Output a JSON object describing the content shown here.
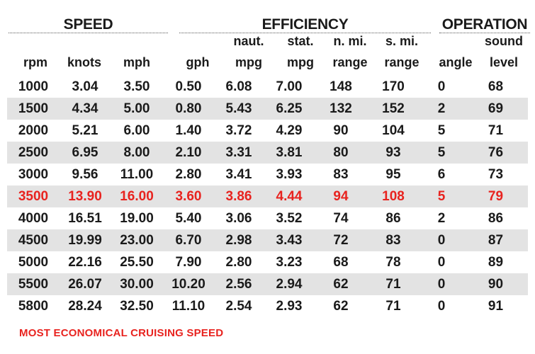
{
  "groups": {
    "speed": "SPEED",
    "efficiency": "EFFICIENCY",
    "operation": "OPERATION"
  },
  "headers": {
    "rpm": [
      "",
      "rpm"
    ],
    "knots": [
      "",
      "knots"
    ],
    "mph": [
      "",
      "mph"
    ],
    "gph": [
      "",
      "gph"
    ],
    "naut_mpg": [
      "naut.",
      "mpg"
    ],
    "stat_mpg": [
      "stat.",
      "mpg"
    ],
    "n_mi_range": [
      "n. mi.",
      "range"
    ],
    "s_mi_range": [
      "s. mi.",
      "range"
    ],
    "angle": [
      "",
      "angle"
    ],
    "sound_level": [
      "sound",
      "level"
    ]
  },
  "rows": [
    [
      "1000",
      "3.04",
      "3.50",
      "0.50",
      "6.08",
      "7.00",
      "148",
      "170",
      "0",
      "68"
    ],
    [
      "1500",
      "4.34",
      "5.00",
      "0.80",
      "5.43",
      "6.25",
      "132",
      "152",
      "2",
      "69"
    ],
    [
      "2000",
      "5.21",
      "6.00",
      "1.40",
      "3.72",
      "4.29",
      "90",
      "104",
      "5",
      "71"
    ],
    [
      "2500",
      "6.95",
      "8.00",
      "2.10",
      "3.31",
      "3.81",
      "80",
      "93",
      "5",
      "76"
    ],
    [
      "3000",
      "9.56",
      "11.00",
      "2.80",
      "3.41",
      "3.93",
      "83",
      "95",
      "6",
      "73"
    ],
    [
      "3500",
      "13.90",
      "16.00",
      "3.60",
      "3.86",
      "4.44",
      "94",
      "108",
      "5",
      "79"
    ],
    [
      "4000",
      "16.51",
      "19.00",
      "5.40",
      "3.06",
      "3.52",
      "74",
      "86",
      "2",
      "86"
    ],
    [
      "4500",
      "19.99",
      "23.00",
      "6.70",
      "2.98",
      "3.43",
      "72",
      "83",
      "0",
      "87"
    ],
    [
      "5000",
      "22.16",
      "25.50",
      "7.90",
      "2.80",
      "3.23",
      "68",
      "78",
      "0",
      "89"
    ],
    [
      "5500",
      "26.07",
      "30.00",
      "10.20",
      "2.56",
      "2.94",
      "62",
      "71",
      "0",
      "90"
    ],
    [
      "5800",
      "28.24",
      "32.50",
      "11.10",
      "2.54",
      "2.93",
      "62",
      "71",
      "0",
      "91"
    ]
  ],
  "highlight_row_index": 5,
  "footnote": "MOST ECONOMICAL CRUISING SPEED",
  "colors": {
    "highlight": "#e8231f",
    "stripe": "#e3e3e3",
    "text": "#1a1a1a"
  }
}
